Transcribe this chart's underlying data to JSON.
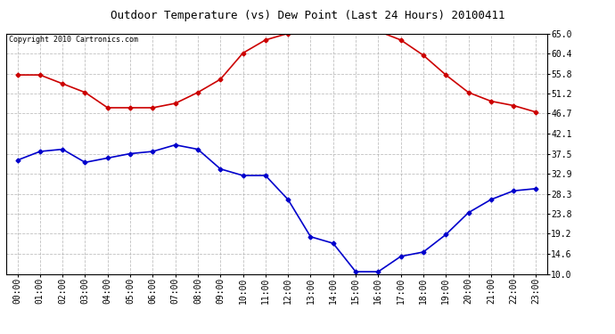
{
  "title": "Outdoor Temperature (vs) Dew Point (Last 24 Hours) 20100411",
  "copyright": "Copyright 2010 Cartronics.com",
  "hours": [
    "00:00",
    "01:00",
    "02:00",
    "03:00",
    "04:00",
    "05:00",
    "06:00",
    "07:00",
    "08:00",
    "09:00",
    "10:00",
    "11:00",
    "12:00",
    "13:00",
    "14:00",
    "15:00",
    "16:00",
    "17:00",
    "18:00",
    "19:00",
    "20:00",
    "21:00",
    "22:00",
    "23:00"
  ],
  "temp": [
    55.5,
    55.5,
    53.5,
    51.5,
    48.0,
    48.0,
    48.0,
    49.0,
    51.5,
    54.5,
    60.5,
    63.5,
    65.0,
    66.0,
    66.5,
    66.0,
    65.5,
    63.5,
    60.0,
    55.5,
    51.5,
    49.5,
    48.5,
    47.0
  ],
  "dew": [
    36.0,
    38.0,
    38.5,
    35.5,
    36.5,
    37.5,
    38.0,
    39.5,
    38.5,
    34.0,
    32.5,
    32.5,
    27.0,
    18.5,
    17.0,
    10.5,
    10.5,
    14.0,
    15.0,
    19.0,
    24.0,
    27.0,
    29.0,
    29.5
  ],
  "yticks": [
    10.0,
    14.6,
    19.2,
    23.8,
    28.3,
    32.9,
    37.5,
    42.1,
    46.7,
    51.2,
    55.8,
    60.4,
    65.0
  ],
  "ylim": [
    10.0,
    65.0
  ],
  "temp_color": "#cc0000",
  "dew_color": "#0000cc",
  "bg_color": "#ffffff",
  "grid_color": "#b0b0b0",
  "marker": "D",
  "marker_size": 2.5,
  "line_width": 1.2,
  "title_fontsize": 9,
  "tick_fontsize": 7,
  "copyright_fontsize": 6
}
